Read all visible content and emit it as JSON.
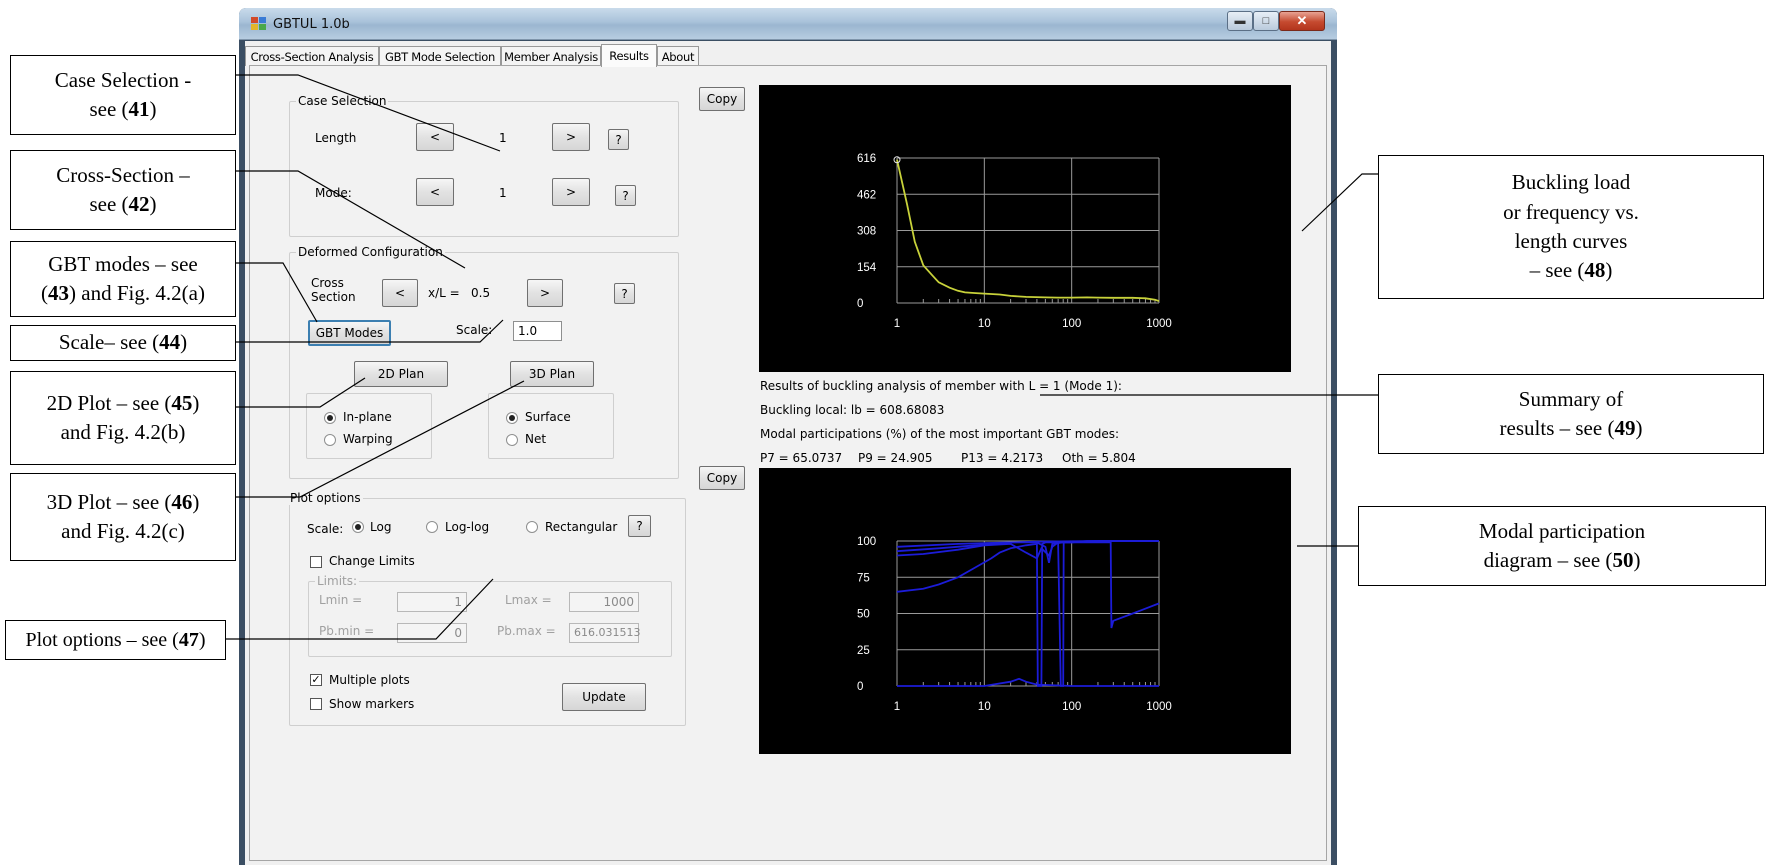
{
  "window": {
    "title": "GBTUL 1.0b",
    "tabs": [
      {
        "label": "Cross-Section Analysis"
      },
      {
        "label": "GBT Mode Selection"
      },
      {
        "label": "Member Analysis"
      },
      {
        "label": "Results"
      },
      {
        "label": "About"
      }
    ],
    "active_tab": "Results"
  },
  "case_selection": {
    "legend": "Case Selection",
    "length_label": "Length",
    "length_value": "1",
    "mode_label": "Mode:",
    "mode_value": "1",
    "prev": "<",
    "next": ">",
    "help": "?"
  },
  "deformed": {
    "legend": "Deformed Configuration",
    "cross_section_label": "Cross\nSection",
    "xl_label": "x/L =",
    "xl_value": "0.5",
    "gbt_modes_button": "GBT Modes",
    "scale_label": "Scale:",
    "scale_value": "1.0",
    "plan2d_button": "2D Plan",
    "plan3d_button": "3D Plan",
    "inplane": "In-plane",
    "warping": "Warping",
    "surface": "Surface",
    "net": "Net"
  },
  "plot_options": {
    "legend": "Plot options",
    "scale_label": "Scale:",
    "log": "Log",
    "loglog": "Log-log",
    "rectangular": "Rectangular",
    "change_limits": "Change Limits",
    "limits_legend": "Limits:",
    "lmin_label": "Lmin =",
    "lmin_value": "1",
    "lmax_label": "Lmax =",
    "lmax_value": "1000",
    "pbmin_label": "Pb.min =",
    "pbmin_value": "0",
    "pbmax_label": "Pb.max =",
    "pbmax_value": "616.031513",
    "multiple_plots": "Multiple plots",
    "show_markers": "Show markers",
    "update_button": "Update"
  },
  "copy_button": "Copy",
  "summary": {
    "line1": "Results of buckling analysis of member with L = 1 (Mode 1):",
    "line2": "Buckling local: lb = 608.68083",
    "line3": "Modal participations (%) of the most important GBT modes:",
    "p7": "P7 = 65.0737",
    "p9": "P9 = 24.905",
    "p13": "P13 = 4.2173",
    "oth": "Oth = 5.804"
  },
  "callouts": {
    "c41": {
      "text": "Case Selection -\nsee (",
      "num": "41",
      "end": ")"
    },
    "c42": {
      "text": "Cross-Section –\nsee (",
      "num": "42",
      "end": ")"
    },
    "c43": {
      "pre": "GBT modes – see\n(",
      "num": "43",
      "end": ") and Fig. 4.2(a)"
    },
    "c44": {
      "pre": "Scale– see (",
      "num": "44",
      "end": ")"
    },
    "c45": {
      "pre": "2D Plot – see (",
      "num": "45",
      "end": ")\nand Fig. 4.2(b)"
    },
    "c46": {
      "pre": "3D Plot – see (",
      "num": "46",
      "end": ")\nand Fig. 4.2(c)"
    },
    "c47": {
      "pre": "Plot options – see (",
      "num": "47",
      "end": ")"
    },
    "c48": {
      "pre": "Buckling load\nor frequency vs.\nlength curves\n– see (",
      "num": "48",
      "end": ")"
    },
    "c49": {
      "pre": "Summary of\nresults – see (",
      "num": "49",
      "end": ")"
    },
    "c50": {
      "pre": "Modal participation\ndiagram – see (",
      "num": "50",
      "end": ")"
    }
  },
  "chart_data": [
    {
      "type": "line",
      "title": "",
      "x_scale": "log",
      "xlim": [
        1,
        1000
      ],
      "ylim": [
        0,
        616
      ],
      "x_ticks": [
        "1",
        "10",
        "100",
        "1000"
      ],
      "y_ticks": [
        "616",
        "462",
        "308",
        "154",
        "0"
      ],
      "series": [
        {
          "color": "#c8d23a",
          "x": [
            1,
            1.3,
            1.6,
            2,
            2.5,
            3,
            4,
            5,
            6,
            8,
            10,
            15,
            20,
            30,
            50,
            70,
            100,
            150,
            200,
            300,
            500,
            700,
            900,
            1000
          ],
          "values": [
            608.7,
            420,
            260,
            160,
            120,
            88,
            65,
            52,
            45,
            42,
            40,
            36,
            30,
            26,
            24,
            23,
            23,
            24,
            23,
            22,
            22,
            20,
            14,
            8
          ]
        }
      ]
    },
    {
      "type": "line",
      "title": "",
      "x_scale": "log",
      "xlim": [
        1,
        1000
      ],
      "ylim": [
        0,
        100
      ],
      "x_ticks": [
        "1",
        "10",
        "100",
        "1000"
      ],
      "y_ticks": [
        "100",
        "75",
        "50",
        "25",
        "0"
      ],
      "series": [
        {
          "color": "#1c1cd8",
          "x": [
            1,
            2,
            3,
            5,
            8,
            12,
            15,
            20,
            30,
            40,
            41,
            45,
            46,
            50,
            70,
            75,
            80,
            81,
            100,
            200,
            280,
            285,
            300,
            500,
            1000
          ],
          "values": [
            65,
            67,
            70,
            75,
            82,
            88,
            92,
            95,
            97,
            98,
            0,
            0,
            98,
            99,
            99,
            0,
            0,
            99,
            99,
            99,
            99,
            40,
            45,
            50,
            57
          ]
        },
        {
          "color": "#1c1cd8",
          "x": [
            1,
            2,
            5,
            10,
            20,
            30,
            40,
            45,
            55,
            60,
            70,
            100,
            200,
            400,
            1000
          ],
          "values": [
            90,
            91,
            94,
            97,
            98,
            92,
            88,
            95,
            90,
            96,
            99,
            99,
            100,
            100,
            100
          ]
        },
        {
          "color": "#1c1cd8",
          "x": [
            1,
            3,
            8,
            20,
            40,
            50,
            55,
            60,
            80,
            100,
            150,
            300,
            1000
          ],
          "values": [
            93,
            95,
            97,
            99,
            99,
            96,
            85,
            98,
            99,
            99,
            100,
            100,
            100
          ]
        },
        {
          "color": "#1c1cd8",
          "x": [
            1,
            5,
            20,
            40,
            100,
            200,
            1000
          ],
          "values": [
            96,
            98,
            99,
            99.5,
            99.8,
            100,
            100
          ]
        },
        {
          "color": "#1c1cd8",
          "x": [
            1,
            10,
            20,
            25,
            30,
            40,
            100,
            1000
          ],
          "values": [
            0,
            0,
            3,
            5,
            3,
            1,
            0,
            0
          ]
        }
      ]
    }
  ]
}
